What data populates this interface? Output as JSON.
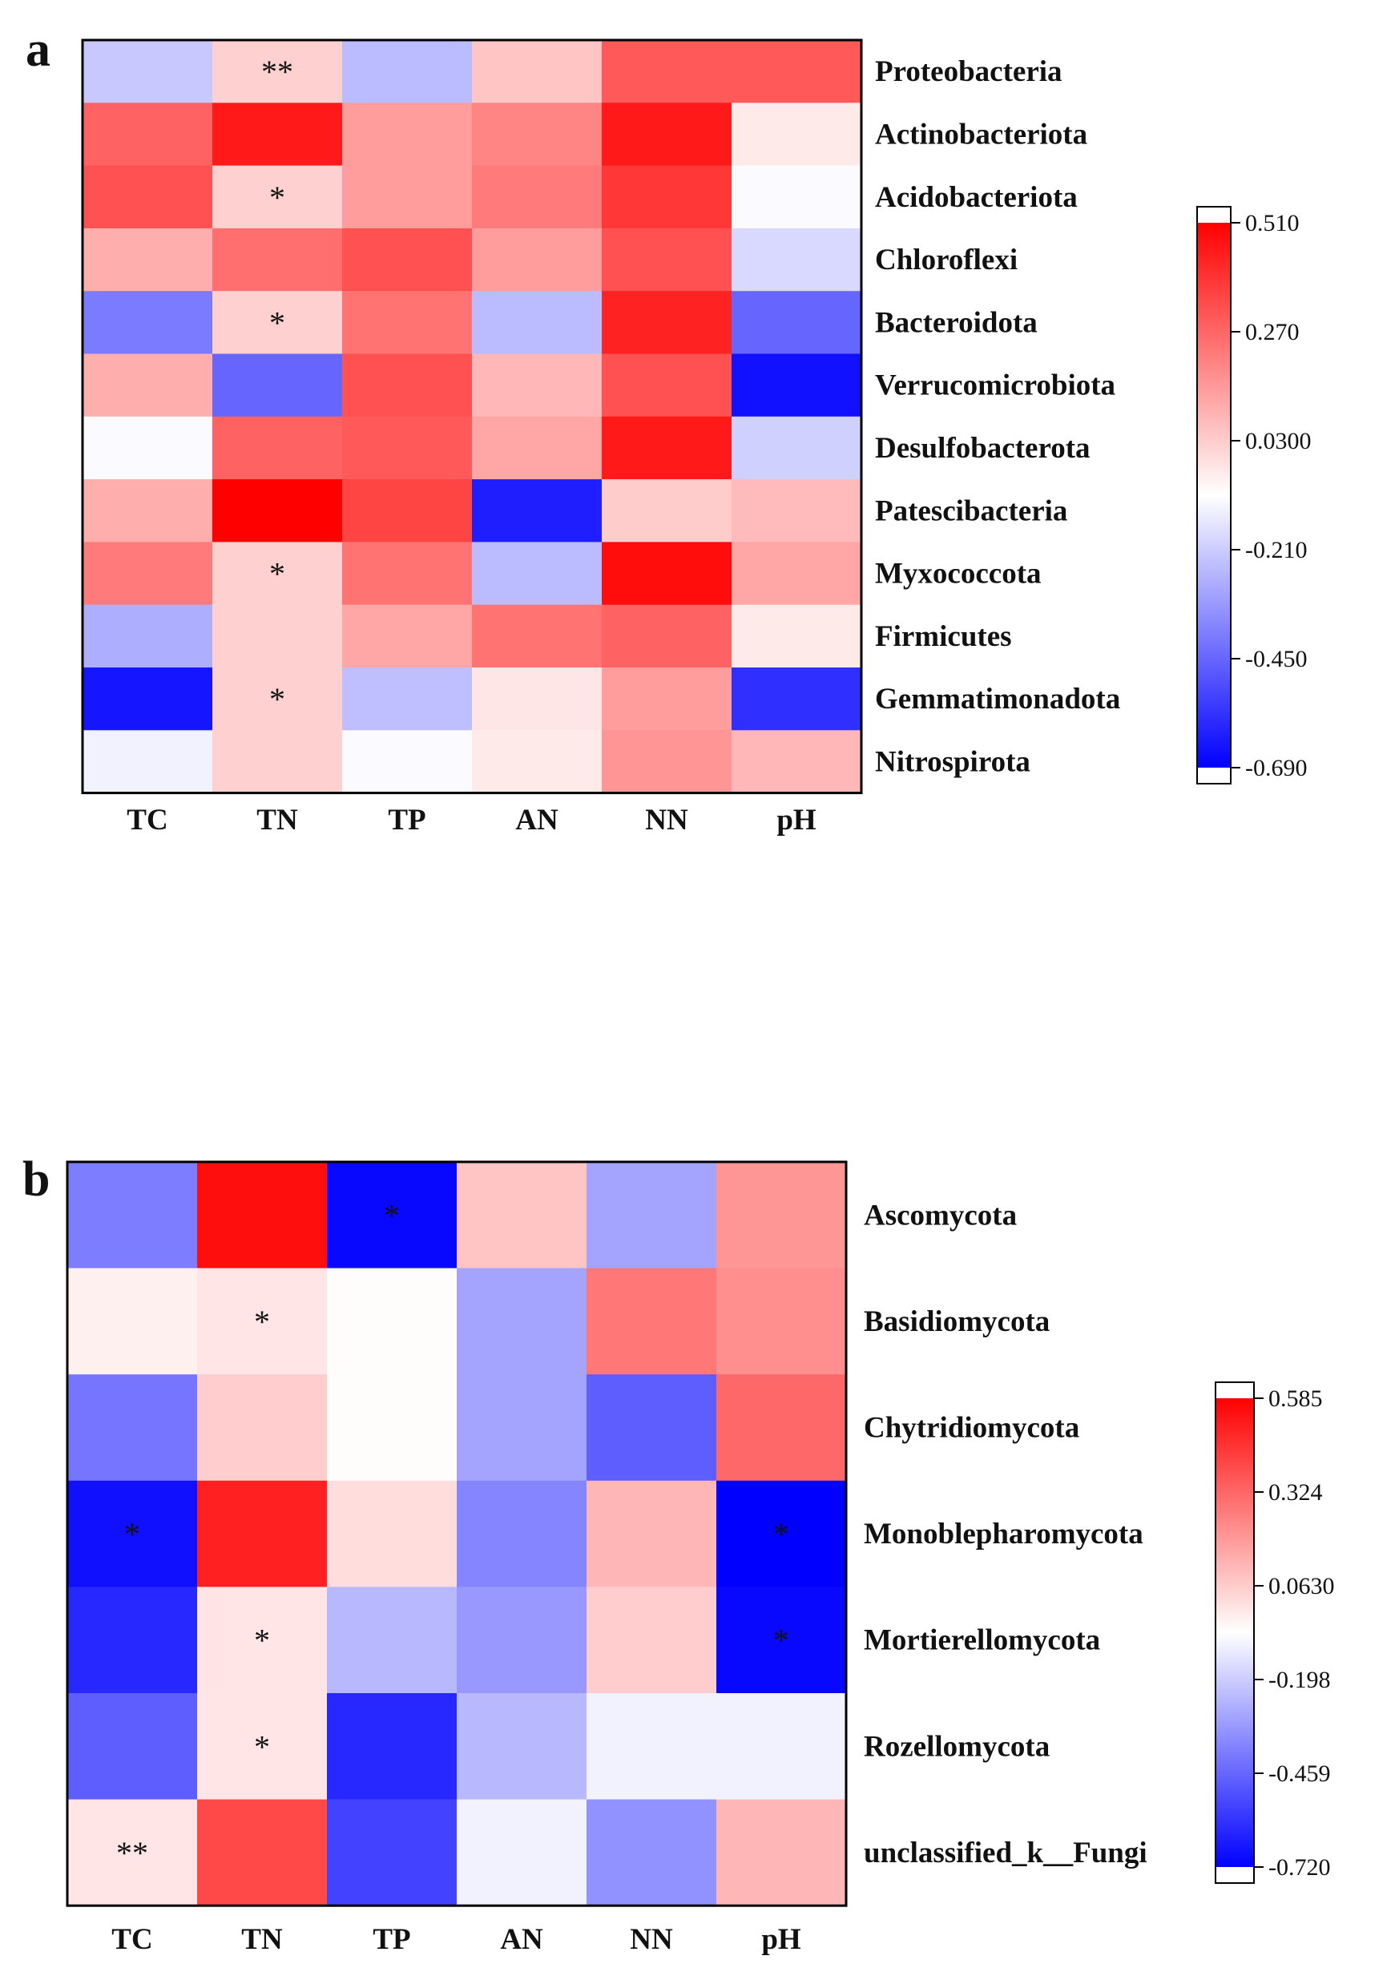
{
  "chart_data": [
    {
      "type": "heatmap",
      "panel": "a",
      "columns": [
        "TC",
        "TN",
        "TP",
        "AN",
        "NN",
        "pH"
      ],
      "rows": [
        "Proteobacteria",
        "Actinobacteriota",
        "Acidobacteriota",
        "Chloroflexi",
        "Bacteroidota",
        "Verrucomicrobiota",
        "Desulfobacterota",
        "Patescibacteria",
        "Myxococcota",
        "Firmicutes",
        "Gemmatimonadota",
        "Nitrospirota"
      ],
      "values": [
        [
          -0.22,
          0.02,
          -0.25,
          0.05,
          0.3,
          0.3
        ],
        [
          0.28,
          0.45,
          0.14,
          0.2,
          0.45,
          -0.04
        ],
        [
          0.32,
          0.02,
          0.14,
          0.22,
          0.38,
          -0.1
        ],
        [
          0.1,
          0.25,
          0.32,
          0.14,
          0.32,
          -0.18
        ],
        [
          -0.4,
          0.02,
          0.24,
          -0.25,
          0.43,
          -0.45
        ],
        [
          0.1,
          -0.45,
          0.32,
          0.08,
          0.32,
          -0.65
        ],
        [
          -0.1,
          0.28,
          0.3,
          0.12,
          0.45,
          -0.2
        ],
        [
          0.1,
          0.51,
          0.35,
          -0.62,
          0.03,
          0.07
        ],
        [
          0.22,
          0.02,
          0.24,
          -0.25,
          0.48,
          0.12
        ],
        [
          -0.28,
          0.02,
          0.12,
          0.24,
          0.28,
          -0.04
        ],
        [
          -0.64,
          0.02,
          -0.24,
          -0.03,
          0.14,
          -0.58
        ],
        [
          -0.12,
          0.02,
          -0.1,
          -0.04,
          0.16,
          0.08
        ]
      ],
      "significance": [
        [
          "",
          "**",
          "",
          "",
          "",
          ""
        ],
        [
          "",
          "",
          "",
          "",
          "",
          ""
        ],
        [
          "",
          "*",
          "",
          "",
          "",
          ""
        ],
        [
          "",
          "",
          "",
          "",
          "",
          ""
        ],
        [
          "",
          "*",
          "",
          "",
          "",
          ""
        ],
        [
          "",
          "",
          "",
          "",
          "",
          ""
        ],
        [
          "",
          "",
          "",
          "",
          "",
          ""
        ],
        [
          "",
          "",
          "",
          "",
          "",
          ""
        ],
        [
          "",
          "*",
          "",
          "",
          "",
          ""
        ],
        [
          "",
          "",
          "",
          "",
          "",
          ""
        ],
        [
          "",
          "*",
          "",
          "",
          "",
          ""
        ],
        [
          "",
          "",
          "",
          "",
          "",
          ""
        ]
      ],
      "color_range": [
        -0.69,
        0.51
      ],
      "colorbar_ticks": [
        0.51,
        0.27,
        0.03,
        -0.21,
        -0.45,
        -0.69
      ],
      "colorbar_tick_labels": [
        "0.510",
        "0.270",
        "0.0300",
        "-0.210",
        "-0.450",
        "-0.690"
      ],
      "colors": {
        "low": "#0000ff",
        "mid": "#ffffff",
        "high": "#ff0000"
      }
    },
    {
      "type": "heatmap",
      "panel": "b",
      "columns": [
        "TC",
        "TN",
        "TP",
        "AN",
        "NN",
        "pH"
      ],
      "rows": [
        "Ascomycota",
        "Basidiomycota",
        "Chytridiomycota",
        "Monoblepharomycota",
        "Mortierellomycota",
        "Rozellomycota",
        "unclassified_k__Fungi"
      ],
      "values": [
        [
          -0.4,
          0.55,
          -0.7,
          0.08,
          -0.3,
          0.2
        ],
        [
          -0.03,
          0.0,
          -0.06,
          -0.3,
          0.28,
          0.22
        ],
        [
          -0.42,
          0.06,
          -0.06,
          -0.3,
          -0.48,
          0.32
        ],
        [
          -0.68,
          0.5,
          0.02,
          -0.38,
          0.12,
          -0.72
        ],
        [
          -0.62,
          0.0,
          -0.25,
          -0.33,
          0.06,
          -0.7
        ],
        [
          -0.48,
          0.0,
          -0.62,
          -0.25,
          -0.1,
          -0.1
        ],
        [
          0.0,
          0.4,
          -0.55,
          -0.1,
          -0.35,
          0.12
        ]
      ],
      "significance": [
        [
          "",
          "",
          "*",
          "",
          "",
          ""
        ],
        [
          "",
          "*",
          "",
          "",
          "",
          ""
        ],
        [
          "",
          "",
          "",
          "",
          "",
          ""
        ],
        [
          "*",
          "",
          "",
          "",
          "",
          "*"
        ],
        [
          "",
          "*",
          "",
          "",
          "",
          "*"
        ],
        [
          "",
          "*",
          "",
          "",
          "",
          ""
        ],
        [
          "**",
          "",
          "",
          "",
          "",
          ""
        ]
      ],
      "color_range": [
        -0.72,
        0.585
      ],
      "colorbar_ticks": [
        0.585,
        0.324,
        0.063,
        -0.198,
        -0.459,
        -0.72
      ],
      "colorbar_tick_labels": [
        "0.585",
        "0.324",
        "0.0630",
        "-0.198",
        "-0.459",
        "-0.720"
      ],
      "colors": {
        "low": "#0000ff",
        "mid": "#ffffff",
        "high": "#ff0000"
      }
    }
  ],
  "panel_labels": [
    "a",
    "b"
  ]
}
